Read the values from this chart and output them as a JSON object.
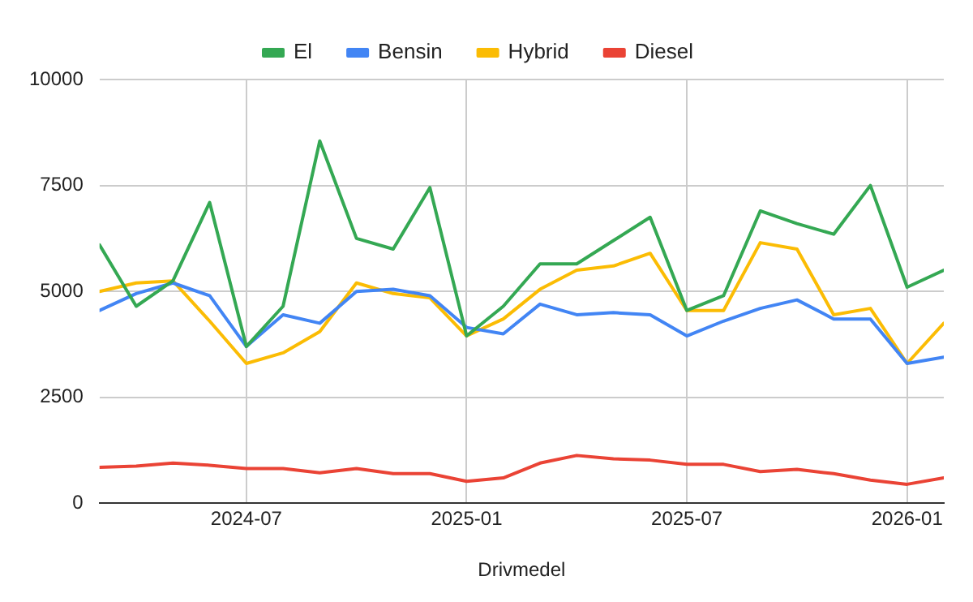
{
  "chart_data": {
    "type": "line",
    "xlabel": "Drivmedel",
    "x": [
      "2024-03",
      "2024-04",
      "2024-05",
      "2024-06",
      "2024-07",
      "2024-08",
      "2024-09",
      "2024-10",
      "2024-11",
      "2024-12",
      "2025-01",
      "2025-02",
      "2025-03",
      "2025-04",
      "2025-05",
      "2025-06",
      "2025-07",
      "2025-08",
      "2025-09",
      "2025-10",
      "2025-11",
      "2025-12",
      "2026-01",
      "2026-02"
    ],
    "series": [
      {
        "name": "El",
        "color": "#34a853",
        "values": [
          6100,
          4650,
          5250,
          7100,
          3700,
          4650,
          8550,
          6250,
          6000,
          7450,
          3950,
          4650,
          5650,
          5650,
          6200,
          6750,
          4550,
          4900,
          6900,
          6600,
          6350,
          7500,
          5100,
          5500
        ]
      },
      {
        "name": "Bensin",
        "color": "#4285f4",
        "values": [
          4550,
          4950,
          5200,
          4900,
          3700,
          4450,
          4250,
          5000,
          5050,
          4900,
          4150,
          4000,
          4700,
          4450,
          4500,
          4450,
          3950,
          4300,
          4600,
          4800,
          4350,
          4350,
          3300,
          3450
        ]
      },
      {
        "name": "Hybrid",
        "color": "#fbbc04",
        "values": [
          5000,
          5200,
          5250,
          4300,
          3300,
          3550,
          4050,
          5200,
          4950,
          4850,
          3950,
          4350,
          5050,
          5500,
          5600,
          5900,
          4550,
          4550,
          6150,
          6000,
          4450,
          4600,
          3300,
          4250
        ]
      },
      {
        "name": "Diesel",
        "color": "#ea4335",
        "values": [
          850,
          880,
          950,
          900,
          820,
          820,
          720,
          820,
          700,
          700,
          520,
          600,
          950,
          1130,
          1050,
          1020,
          920,
          920,
          750,
          800,
          700,
          550,
          450,
          600
        ]
      }
    ],
    "xlim": [
      "2024-03",
      "2026-02"
    ],
    "xticks": [
      "2024-07",
      "2025-01",
      "2025-07",
      "2026-01"
    ],
    "ylim": [
      0,
      10000
    ],
    "yticks": [
      0,
      2500,
      5000,
      7500,
      10000
    ],
    "grid": true,
    "legend": "top",
    "marker": "none",
    "line_style": "solid"
  }
}
